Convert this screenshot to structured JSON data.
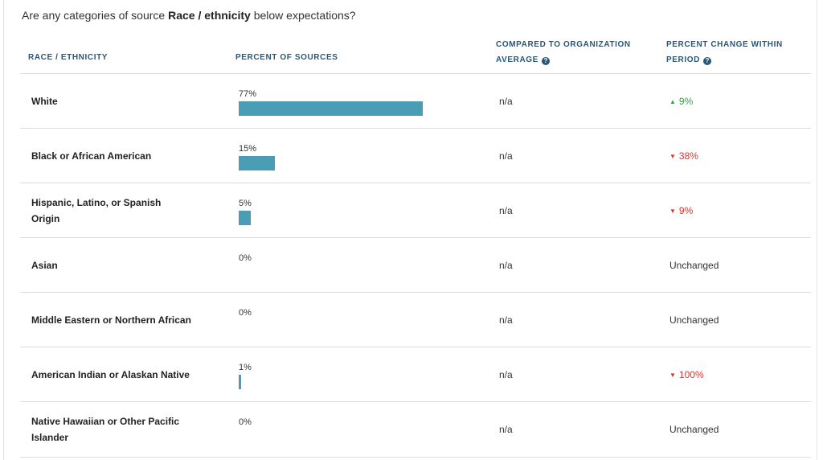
{
  "question": {
    "before": "Are any categories of source ",
    "bold": "Race / ethnicity",
    "after": " below expectations?"
  },
  "table": {
    "headers": [
      "RACE / ETHNICITY",
      "PERCENT OF SOURCES",
      "COMPARED TO ORGANIZATION AVERAGE",
      "PERCENT CHANGE WITHIN PERIOD"
    ],
    "rows": [
      {
        "name": "White",
        "percent": {
          "value": 77,
          "label": "77%"
        },
        "compared": "n/a",
        "change": {
          "direction": "up",
          "label": "9%"
        }
      },
      {
        "name": "Black or African American",
        "percent": {
          "value": 15,
          "label": "15%"
        },
        "compared": "n/a",
        "change": {
          "direction": "down",
          "label": "38%"
        }
      },
      {
        "name": "Hispanic, Latino, or Spanish Origin",
        "percent": {
          "value": 5,
          "label": "5%"
        },
        "compared": "n/a",
        "change": {
          "direction": "down",
          "label": "9%"
        }
      },
      {
        "name": "Asian",
        "percent": {
          "value": 0,
          "label": "0%"
        },
        "compared": "n/a",
        "change": {
          "label": "Unchanged"
        }
      },
      {
        "name": "Middle Eastern or Northern African",
        "percent": {
          "value": 0,
          "label": "0%"
        },
        "compared": "n/a",
        "change": {
          "label": "Unchanged"
        }
      },
      {
        "name": "American Indian or Alaskan Native",
        "percent": {
          "value": 1,
          "label": "1%"
        },
        "compared": "n/a",
        "change": {
          "direction": "down",
          "label": "100%"
        }
      },
      {
        "name": "Native Hawaiian or Other Pacific Islander",
        "percent": {
          "value": 0,
          "label": "0%"
        },
        "compared": "n/a",
        "change": {
          "label": "Unchanged"
        }
      }
    ]
  }
}
